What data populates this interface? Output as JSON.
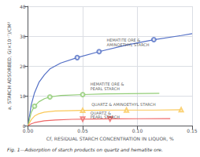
{
  "chart_data": {
    "type": "line",
    "title": "Fig. 1—Adsorption of starch products on quartz and hematite ore.",
    "xlabel": "Cf, RESIDUAL STARCH CONCENTRATION IN LIQUOR, %",
    "ylabel": "a, STARCH ADSORBED, G(×10⁻⁷)/CM²",
    "xlim": [
      0,
      0.15
    ],
    "ylim": [
      0,
      40
    ],
    "xticks": [
      {
        "value": 0,
        "label": "0.00"
      },
      0.05,
      {
        "value": 0.1,
        "label": "0.10"
      },
      0.15
    ],
    "yticks": [
      0,
      10,
      20,
      30,
      40
    ],
    "grid": true,
    "series": [
      {
        "type": "line",
        "marker": "circle",
        "x": [
          0.0,
          0.003,
          0.006,
          0.01,
          0.015,
          0.02,
          0.03,
          0.045,
          0.065,
          0.09,
          0.115,
          0.14,
          0.15
        ],
        "values": [
          0.0,
          7.0,
          11.0,
          14.5,
          17.0,
          19.0,
          21.0,
          22.8,
          24.8,
          27.0,
          28.8,
          30.2,
          30.8
        ],
        "markers": {
          "x": [
            0.045,
            0.065,
            0.115
          ],
          "values": [
            22.8,
            24.8,
            28.8
          ]
        }
      },
      {
        "type": "line",
        "marker": "circle",
        "x": [
          0.0,
          0.003,
          0.006,
          0.01,
          0.015,
          0.02,
          0.03,
          0.05,
          0.07,
          0.09,
          0.12
        ],
        "values": [
          0.0,
          4.5,
          6.5,
          8.0,
          9.0,
          9.6,
          10.1,
          10.4,
          10.6,
          10.7,
          10.8
        ],
        "markers": {
          "x": [
            0.006,
            0.02,
            0.05
          ],
          "values": [
            6.5,
            9.6,
            10.4
          ]
        }
      },
      {
        "type": "line",
        "marker": "triangle-up",
        "x": [
          0.0,
          0.003,
          0.006,
          0.01,
          0.015,
          0.025,
          0.05,
          0.08,
          0.115,
          0.14
        ],
        "values": [
          0.0,
          2.0,
          3.2,
          4.0,
          4.5,
          4.9,
          5.1,
          5.2,
          5.2,
          5.3
        ],
        "markers": {
          "x": [
            0.05,
            0.09,
            0.14
          ],
          "values": [
            5.1,
            5.2,
            5.3
          ]
        }
      },
      {
        "type": "line",
        "marker": "triangle-down",
        "x": [
          0.0,
          0.003,
          0.006,
          0.01,
          0.015,
          0.025,
          0.04,
          0.06,
          0.08,
          0.1,
          0.13
        ],
        "values": [
          0.0,
          0.6,
          1.0,
          1.3,
          1.6,
          1.9,
          2.1,
          2.2,
          2.25,
          2.3,
          2.35
        ],
        "markers": {
          "x": [
            0.05,
            0.075
          ],
          "values": [
            2.2,
            2.25
          ]
        }
      }
    ],
    "annotations": [
      {
        "text": "HEMATITE ORE &",
        "x": 0.072,
        "y": 28.0
      },
      {
        "text": "AMINOETHYL STARCH",
        "x": 0.072,
        "y": 26.2
      },
      {
        "text": "HEMATITE ORE &",
        "x": 0.057,
        "y": 13.2
      },
      {
        "text": "PEARL STARCH",
        "x": 0.057,
        "y": 11.6
      },
      {
        "text": "QUARTZ & AMINOETHYL STARCH",
        "x": 0.058,
        "y": 6.4
      },
      {
        "text": "QUARTZ &",
        "x": 0.057,
        "y": 3.5
      },
      {
        "text": "PEARL STARCH",
        "x": 0.057,
        "y": 2.0
      }
    ]
  }
}
